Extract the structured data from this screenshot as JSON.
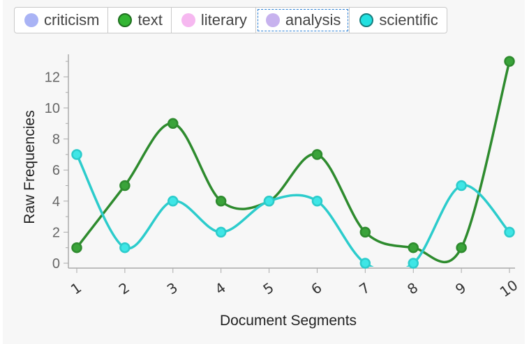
{
  "legend": {
    "items": [
      {
        "label": "criticism",
        "color": "#a9b3f5",
        "outline": false
      },
      {
        "label": "text",
        "color": "#33b533",
        "outline": true
      },
      {
        "label": "literary",
        "color": "#f6b8f0",
        "outline": false
      },
      {
        "label": "analysis",
        "color": "#c7b2ee",
        "outline": false,
        "focused": true
      },
      {
        "label": "scientific",
        "color": "#21e0e0",
        "outline": true
      }
    ]
  },
  "chart_data": {
    "type": "line",
    "xlabel": "Document Segments",
    "ylabel": "Raw Frequencies",
    "categories": [
      "1",
      "2",
      "3",
      "4",
      "5",
      "6",
      "7",
      "8",
      "9",
      "10"
    ],
    "ylim": [
      0,
      13
    ],
    "yticks": [
      0,
      2,
      4,
      6,
      8,
      10,
      12
    ],
    "series": [
      {
        "name": "text",
        "color": "#2e8b2e",
        "marker_fill": "#3aa33a",
        "values": [
          1,
          5,
          9,
          4,
          4,
          7,
          2,
          1,
          1,
          13
        ]
      },
      {
        "name": "scientific",
        "color": "#2ccccc",
        "marker_fill": "#3fe6e6",
        "values": [
          7,
          1,
          4,
          2,
          4,
          4,
          0,
          0,
          5,
          2
        ]
      }
    ]
  }
}
